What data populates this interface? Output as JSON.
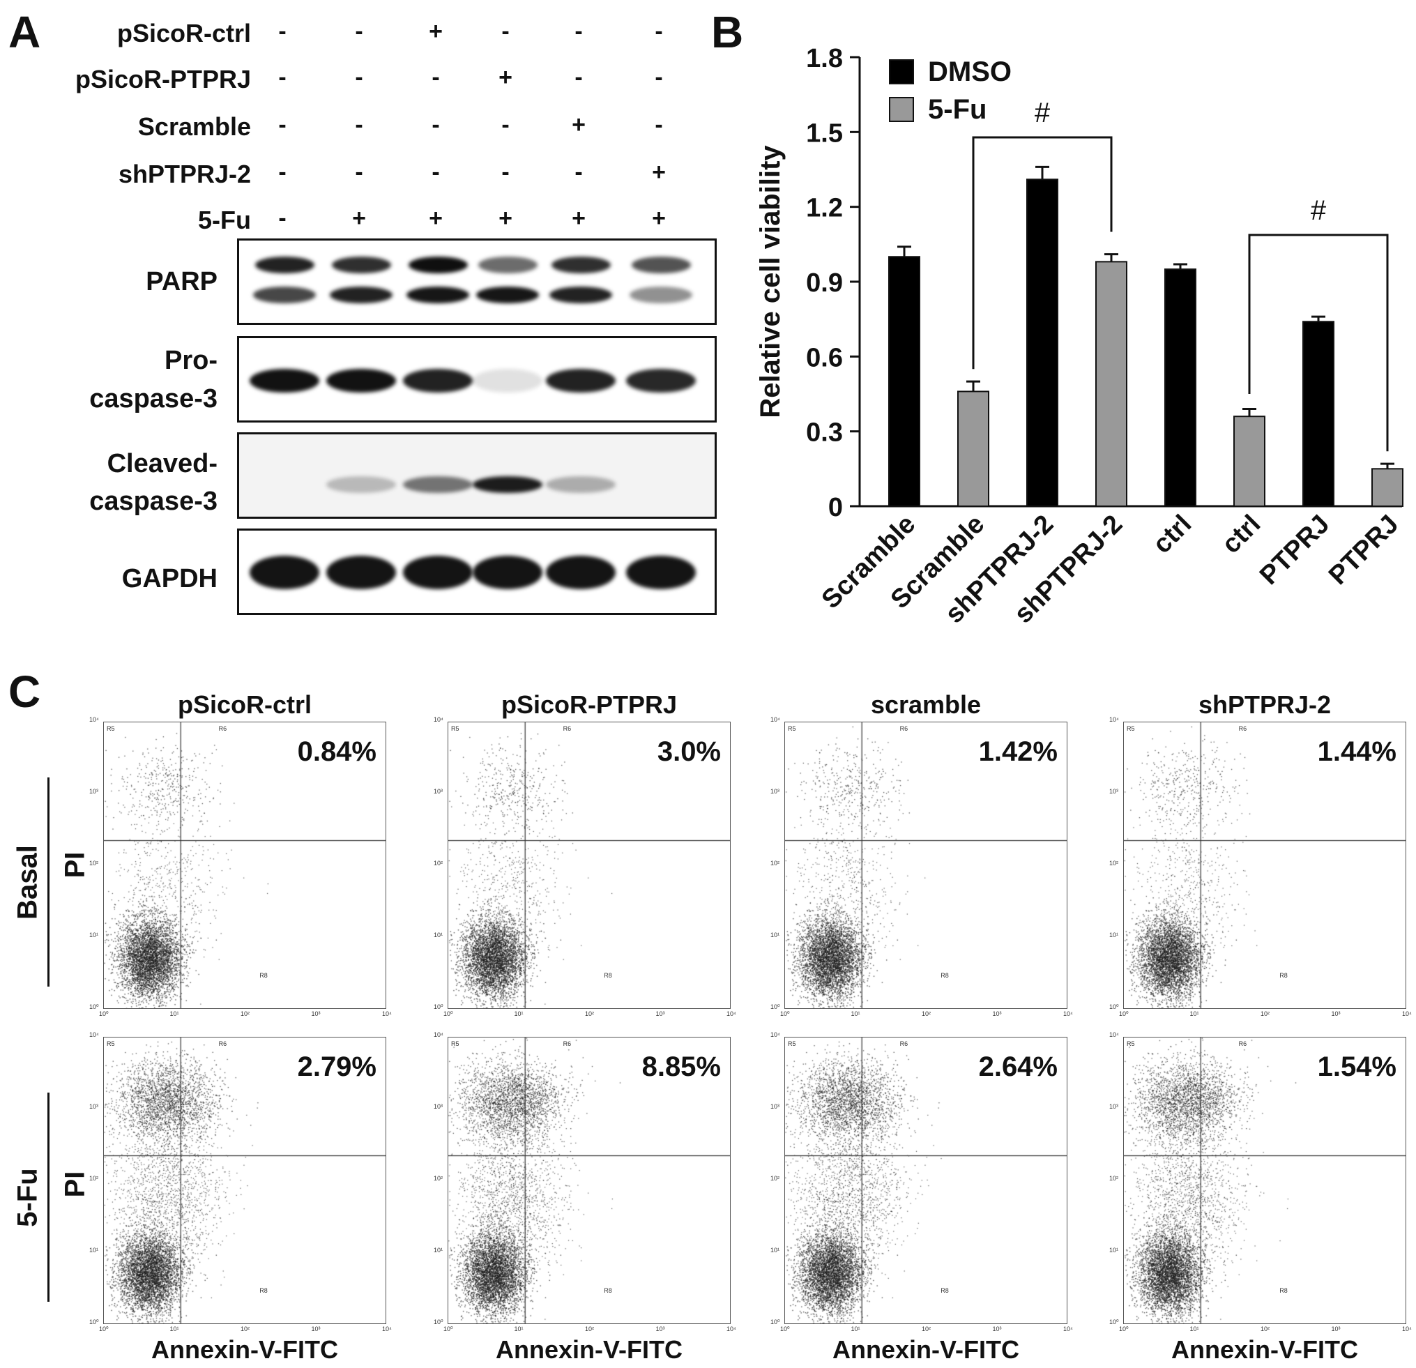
{
  "panel_letters": {
    "a": "A",
    "b": "B",
    "c": "C"
  },
  "panel_a": {
    "treatments": [
      {
        "label": "pSicoR-ctrl",
        "signs": [
          "-",
          "-",
          "+",
          "-",
          "-",
          "-"
        ]
      },
      {
        "label": "pSicoR-PTPRJ",
        "signs": [
          "-",
          "-",
          "-",
          "+",
          "-",
          "-"
        ]
      },
      {
        "label": "Scramble",
        "signs": [
          "-",
          "-",
          "-",
          "-",
          "+",
          "-"
        ]
      },
      {
        "label": "shPTPRJ-2",
        "signs": [
          "-",
          "-",
          "-",
          "-",
          "-",
          "+"
        ]
      },
      {
        "label": "5-Fu",
        "signs": [
          "-",
          "+",
          "+",
          "+",
          "+",
          "+"
        ]
      }
    ],
    "blots": [
      {
        "label_lines": [
          "PARP"
        ]
      },
      {
        "label_lines": [
          "Pro-",
          "caspase-3"
        ]
      },
      {
        "label_lines": [
          "Cleaved-",
          "caspase-3"
        ]
      },
      {
        "label_lines": [
          "GAPDH"
        ]
      }
    ]
  },
  "chart_data": {
    "type": "bar",
    "categories": [
      "Scramble",
      "Scramble",
      "shPTPRJ-2",
      "shPTPRJ-2",
      "ctrl",
      "ctrl",
      "PTPRJ",
      "PTPRJ"
    ],
    "values": [
      1.0,
      0.46,
      1.31,
      0.98,
      0.95,
      0.36,
      0.74,
      0.15
    ],
    "errors": [
      0.04,
      0.04,
      0.05,
      0.03,
      0.02,
      0.03,
      0.02,
      0.02
    ],
    "groups": [
      "DMSO",
      "5-Fu",
      "DMSO",
      "5-Fu",
      "DMSO",
      "5-Fu",
      "DMSO",
      "5-Fu"
    ],
    "legend": [
      {
        "name": "DMSO",
        "color": "#000000"
      },
      {
        "name": "5-Fu",
        "color": "#999999"
      }
    ],
    "ylabel": "Relative cell viability",
    "ylim": [
      0,
      1.8
    ],
    "yticks": [
      "0",
      "0.3",
      "0.6",
      "0.9",
      "1.2",
      "1.5",
      "1.8"
    ],
    "annotations": [
      {
        "text": "#",
        "from_bar": 1,
        "to_bar": 3
      },
      {
        "text": "#",
        "from_bar": 5,
        "to_bar": 7
      }
    ],
    "legend_position": "top-left"
  },
  "panel_c": {
    "columns": [
      "pSicoR-ctrl",
      "pSicoR-PTPRJ",
      "scramble",
      "shPTPRJ-2"
    ],
    "rows": [
      "Basal",
      "5-Fu"
    ],
    "y_label": "PI",
    "x_label": "Annexin-V-FITC",
    "percentages": [
      [
        "0.84%",
        "3.0%",
        "1.42%",
        "1.44%"
      ],
      [
        "2.79%",
        "8.85%",
        "2.64%",
        "1.54%"
      ]
    ],
    "region_labels": [
      "R5",
      "R6",
      "R7",
      "R8"
    ],
    "axis_ticks": [
      "10⁰",
      "10¹",
      "10²",
      "10³",
      "10⁴"
    ]
  }
}
